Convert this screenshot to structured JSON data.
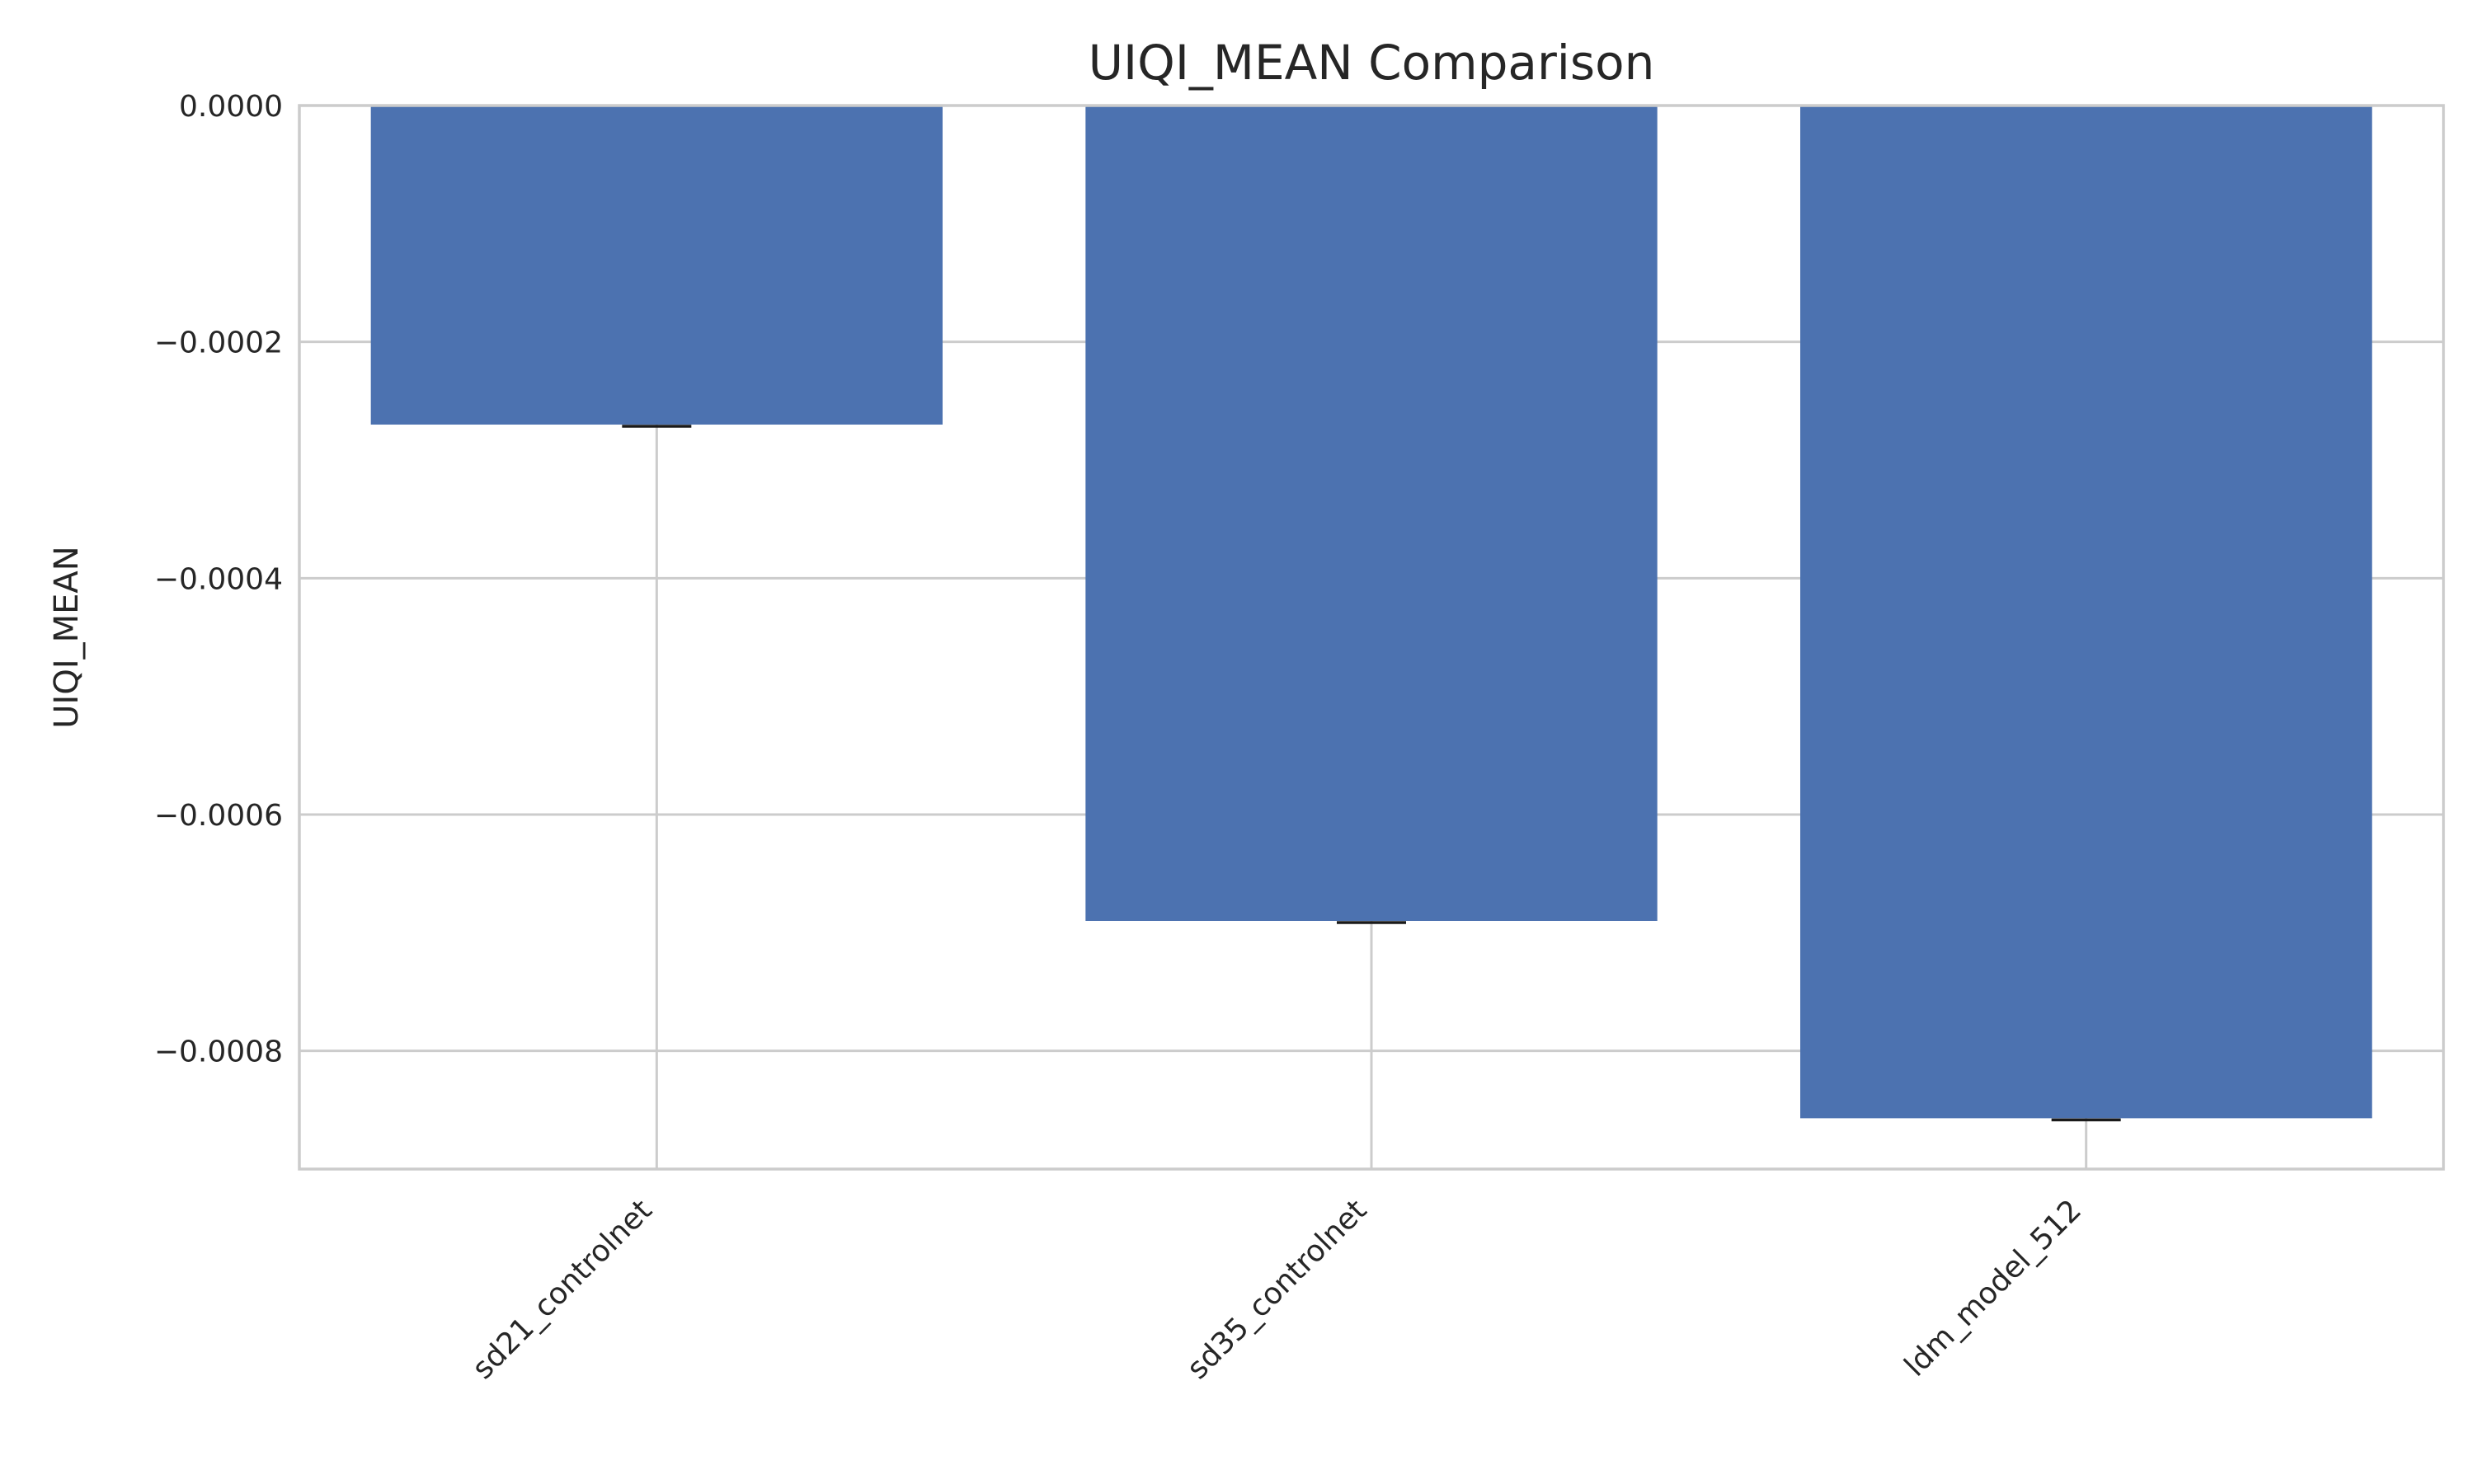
{
  "chart_data": {
    "type": "bar",
    "title": "UIQI_MEAN Comparison",
    "xlabel": "",
    "ylabel": "UIQI_MEAN",
    "categories": [
      "sd21_controlnet",
      "sd35_controlnet",
      "ldm_model_512"
    ],
    "values": [
      -0.00027,
      -0.00069,
      -0.000857
    ],
    "ylim": [
      -0.0009,
      0.0
    ],
    "yticks": [
      0.0,
      -0.0002,
      -0.0004,
      -0.0006,
      -0.0008
    ],
    "ytick_labels": [
      "0.0000",
      "−0.0002",
      "−0.0004",
      "−0.0006",
      "−0.0008"
    ],
    "error_bars": true,
    "grid": true,
    "legend": "none",
    "colors": {
      "bar": "#4c72b0",
      "grid": "#cccccc",
      "text": "#262626",
      "error": "#1a1a1a"
    }
  }
}
